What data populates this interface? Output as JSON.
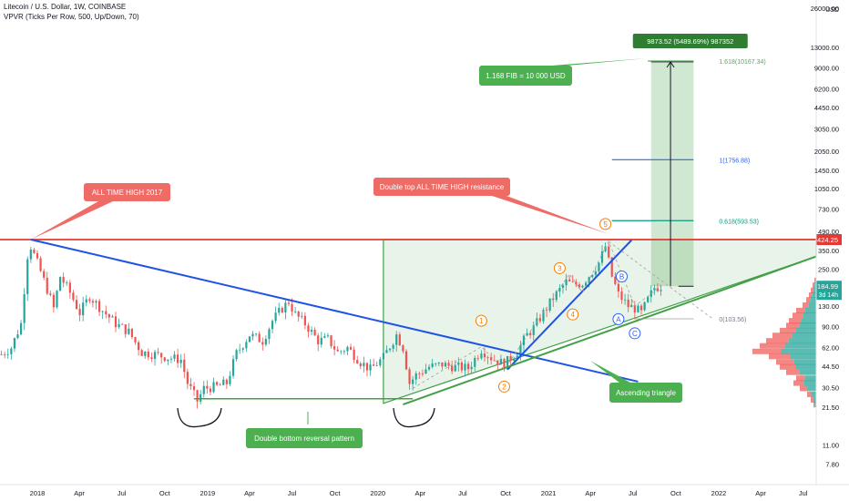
{
  "header": {
    "title": "Litecoin / U.S. Dollar, 1W, COINBASE",
    "indicator": "VPVR (Ticks Per Row, 500, Up/Down, 70)"
  },
  "chart_data": {
    "type": "candlestick",
    "y_scale": "log",
    "y_axis_unit": "USD",
    "y_ticks": [
      26000,
      13000,
      9000,
      6200,
      4450,
      3050,
      2050,
      1450,
      1050,
      730,
      490,
      350,
      250,
      130,
      90,
      62,
      44.5,
      30.5,
      21.5,
      11,
      7.8
    ],
    "y_tick_labels": [
      "26000.00",
      "13000.00",
      "9000.00",
      "6200.00",
      "4450.00",
      "3050.00",
      "2050.00",
      "1450.00",
      "1050.00",
      "730.00",
      "490.00",
      "350.00",
      "250.00",
      "130.00",
      "90.00",
      "62.00",
      "44.50",
      "30.50",
      "21.50",
      "11.00",
      "7.80"
    ],
    "x_ticks": [
      "2018",
      "Apr",
      "Jul",
      "Oct",
      "2019",
      "Apr",
      "Jul",
      "Oct",
      "2020",
      "Apr",
      "Jul",
      "Oct",
      "2021",
      "Apr",
      "Jul",
      "Oct",
      "2022",
      "Apr",
      "Jul"
    ],
    "x_tick_dates": [
      "2018-01-01",
      "2018-04-01",
      "2018-07-01",
      "2018-10-01",
      "2019-01-01",
      "2019-04-01",
      "2019-07-01",
      "2019-10-01",
      "2020-01-01",
      "2020-04-01",
      "2020-07-01",
      "2020-10-01",
      "2021-01-01",
      "2021-04-01",
      "2021-07-01",
      "2021-10-01",
      "2022-01-01",
      "2022-04-01",
      "2022-07-01"
    ],
    "price_path": [
      [
        "2017-10-16",
        55
      ],
      [
        "2017-11-06",
        62
      ],
      [
        "2017-11-27",
        95
      ],
      [
        "2017-12-11",
        320
      ],
      [
        "2017-12-18",
        375
      ],
      [
        "2018-01-08",
        240
      ],
      [
        "2018-01-22",
        175
      ],
      [
        "2018-02-05",
        125
      ],
      [
        "2018-02-19",
        220
      ],
      [
        "2018-03-12",
        165
      ],
      [
        "2018-04-02",
        115
      ],
      [
        "2018-04-23",
        155
      ],
      [
        "2018-05-21",
        120
      ],
      [
        "2018-06-18",
        95
      ],
      [
        "2018-07-16",
        82
      ],
      [
        "2018-08-13",
        57
      ],
      [
        "2018-09-10",
        55
      ],
      [
        "2018-10-08",
        52
      ],
      [
        "2018-11-05",
        50
      ],
      [
        "2018-11-19",
        33
      ],
      [
        "2018-12-10",
        24
      ],
      [
        "2018-12-24",
        30
      ],
      [
        "2019-01-21",
        31
      ],
      [
        "2019-02-11",
        33
      ],
      [
        "2019-03-04",
        56
      ],
      [
        "2019-04-01",
        78
      ],
      [
        "2019-04-29",
        70
      ],
      [
        "2019-05-20",
        100
      ],
      [
        "2019-06-10",
        125
      ],
      [
        "2019-06-24",
        140
      ],
      [
        "2019-07-08",
        112
      ],
      [
        "2019-07-29",
        95
      ],
      [
        "2019-08-26",
        70
      ],
      [
        "2019-09-16",
        72
      ],
      [
        "2019-10-07",
        57
      ],
      [
        "2019-10-28",
        62
      ],
      [
        "2019-11-25",
        48
      ],
      [
        "2019-12-16",
        42
      ],
      [
        "2020-01-13",
        52
      ],
      [
        "2020-02-10",
        78
      ],
      [
        "2020-02-24",
        62
      ],
      [
        "2020-03-09",
        33
      ],
      [
        "2020-03-23",
        38
      ],
      [
        "2020-04-20",
        44
      ],
      [
        "2020-05-18",
        46
      ],
      [
        "2020-06-15",
        44
      ],
      [
        "2020-07-13",
        43
      ],
      [
        "2020-08-10",
        60
      ],
      [
        "2020-08-31",
        52
      ],
      [
        "2020-09-28",
        46
      ],
      [
        "2020-10-26",
        58
      ],
      [
        "2020-11-16",
        78
      ],
      [
        "2020-11-30",
        88
      ],
      [
        "2020-12-21",
        115
      ],
      [
        "2021-01-11",
        150
      ],
      [
        "2021-02-08",
        200
      ],
      [
        "2021-02-22",
        190
      ],
      [
        "2021-03-15",
        195
      ],
      [
        "2021-04-05",
        240
      ],
      [
        "2021-04-19",
        280
      ],
      [
        "2021-05-03",
        375
      ],
      [
        "2021-05-17",
        220
      ],
      [
        "2021-05-31",
        160
      ],
      [
        "2021-06-21",
        130
      ],
      [
        "2021-07-05",
        125
      ],
      [
        "2021-07-19",
        115
      ],
      [
        "2021-08-02",
        145
      ],
      [
        "2021-08-16",
        180
      ],
      [
        "2021-08-30",
        185
      ]
    ],
    "last_price": {
      "value": 184.99,
      "label": "184.99",
      "countdown": "3d 14h"
    },
    "all_time_high": {
      "value": 424.25,
      "label": "424.25"
    },
    "fib_levels": [
      {
        "value": 10167.34,
        "label": "1.618(10167.34)"
      },
      {
        "value": 1756.88,
        "label": "1(1756.88)"
      },
      {
        "value": 593.53,
        "label": "0.618(593.53)"
      },
      {
        "value": 103.56,
        "label": "0(103.56)"
      }
    ],
    "target_box": {
      "label": "9873.52 (5489.69%) 987352",
      "target": 10000,
      "base": 185
    },
    "wave_labels": [
      "1",
      "2",
      "3",
      "4",
      "5",
      "A",
      "B",
      "C"
    ],
    "annotations": {
      "ath": "ALL TIME HIGH 2017",
      "double_top": "Double top ALL TIME HIGH resistance",
      "fib_note": "1.168 FIB = 10 000 USD",
      "double_bottom": "Double bottom reversal pattern",
      "triangle": "Ascending triangle"
    },
    "volume_profile": [
      [
        205,
        2
      ],
      [
        188,
        4
      ],
      [
        172,
        6
      ],
      [
        158,
        8
      ],
      [
        145,
        11
      ],
      [
        132,
        15
      ],
      [
        120,
        22
      ],
      [
        110,
        26
      ],
      [
        100,
        30
      ],
      [
        92,
        33
      ],
      [
        84,
        40
      ],
      [
        77,
        48
      ],
      [
        70,
        55
      ],
      [
        64,
        62
      ],
      [
        58,
        70
      ],
      [
        53,
        52
      ],
      [
        48,
        44
      ],
      [
        44,
        40
      ],
      [
        40,
        33
      ],
      [
        36,
        22
      ],
      [
        33,
        25
      ],
      [
        30,
        18
      ],
      [
        27,
        10
      ],
      [
        24.5,
        6
      ],
      [
        22.5,
        3
      ]
    ],
    "colors": {
      "up": "#26a69a",
      "down": "#ef5350",
      "trend": "#1e53e5",
      "support": "#43a047",
      "resistance": "#e53935",
      "fib_teal": "#089981",
      "fib_blue": "#2962ff",
      "wave_orange": "#f57c00",
      "label_red": "#ee6b66",
      "label_green": "#4caf50"
    }
  }
}
